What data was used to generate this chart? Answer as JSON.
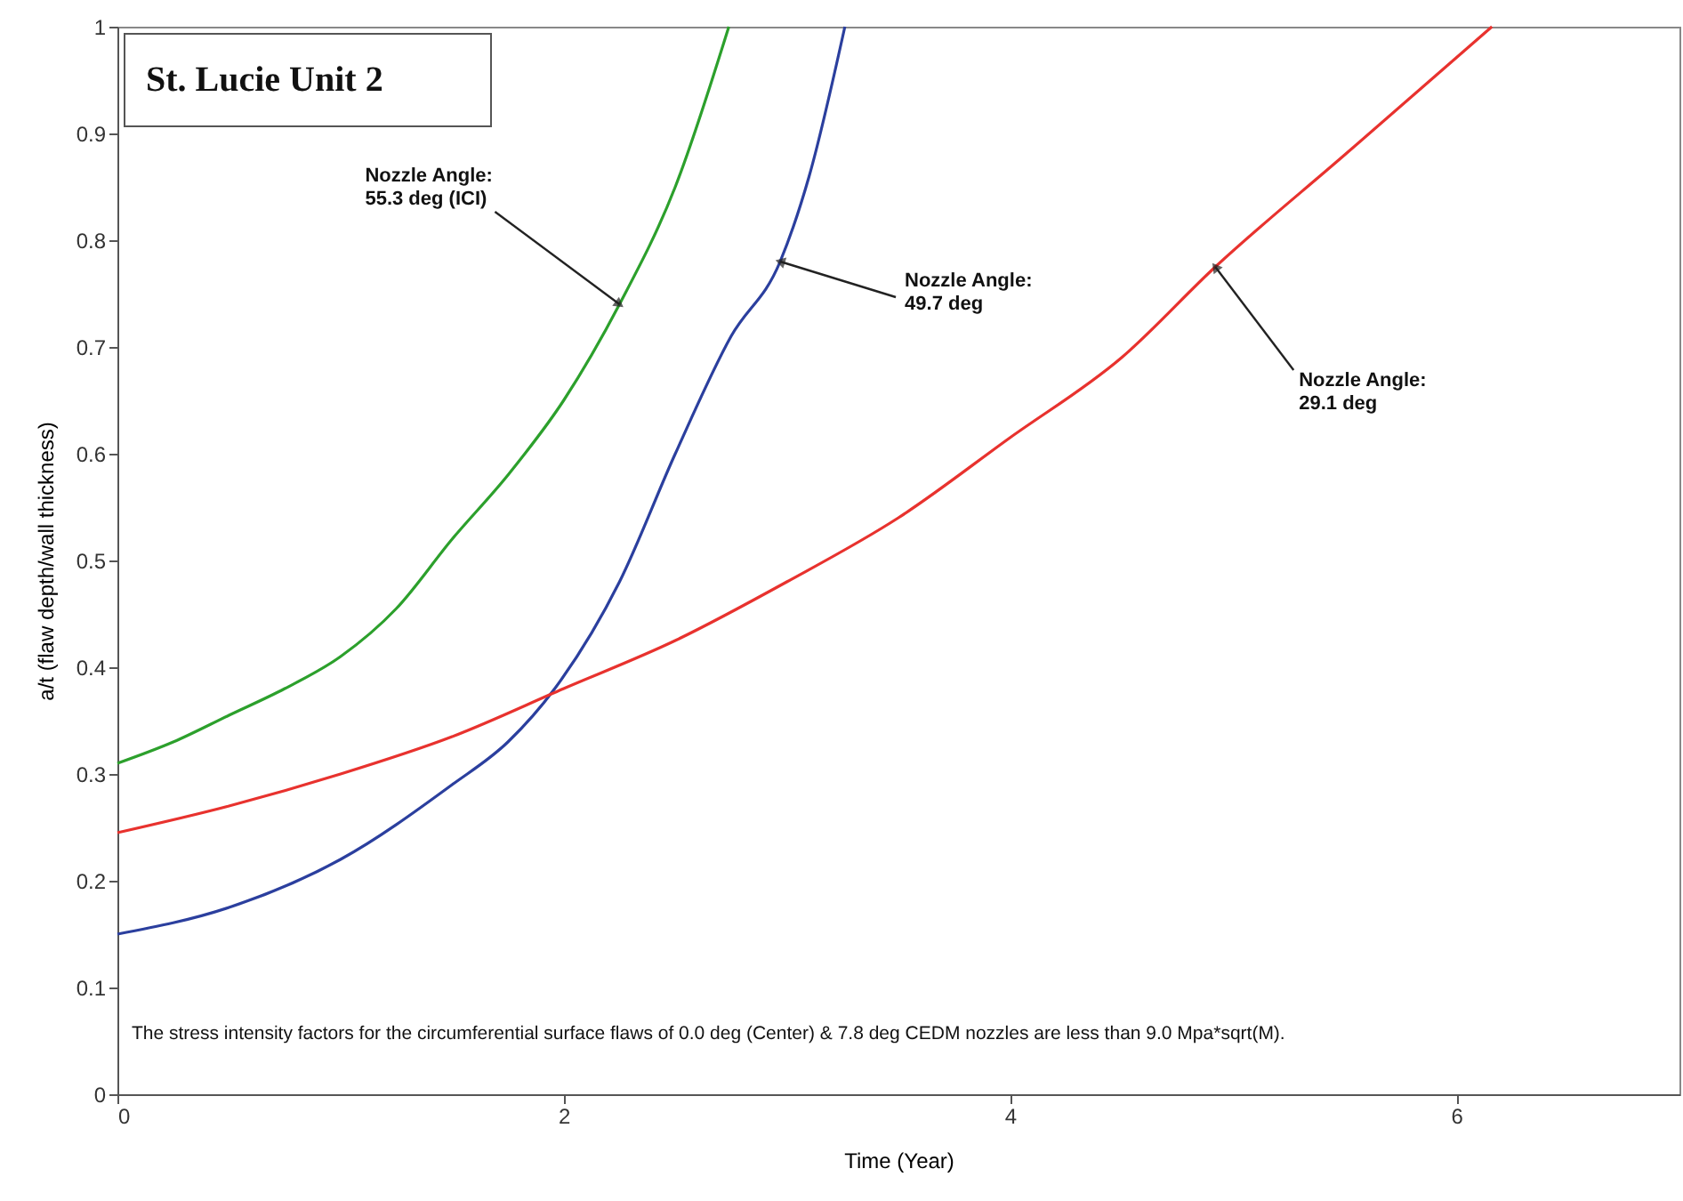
{
  "chart_data": {
    "type": "line",
    "title": "St. Lucie Unit 2",
    "xlabel": "Time (Year)",
    "ylabel": "a/t (flaw depth/wall thickness)",
    "xlim": [
      0,
      7
    ],
    "xticks": [
      0,
      2,
      4,
      6
    ],
    "ylim": [
      0,
      1
    ],
    "yticks": [
      0,
      0.1,
      0.2,
      0.3,
      0.4,
      0.5,
      0.6,
      0.7,
      0.8,
      0.9,
      1
    ],
    "grid": false,
    "marker": "none",
    "line_style": "solid",
    "series": [
      {
        "color": "#2ca02c",
        "x": [
          0,
          0.25,
          0.5,
          0.75,
          1,
          1.25,
          1.5,
          1.75,
          2,
          2.25,
          2.5,
          2.74
        ],
        "values": [
          0.31,
          0.33,
          0.355,
          0.38,
          0.41,
          0.455,
          0.52,
          0.58,
          0.65,
          0.74,
          0.85,
          1.0
        ]
      },
      {
        "color": "#2b3f9e",
        "x": [
          0,
          0.5,
          1,
          1.5,
          1.75,
          1.96,
          2.25,
          2.5,
          2.75,
          2.97,
          3.1,
          3.26
        ],
        "values": [
          0.15,
          0.175,
          0.22,
          0.29,
          0.33,
          0.38,
          0.48,
          0.6,
          0.71,
          0.78,
          0.86,
          1.0
        ]
      },
      {
        "color": "#e8322e",
        "x": [
          0,
          0.5,
          1,
          1.5,
          2,
          2.5,
          3,
          3.5,
          4,
          4.5,
          4.92,
          5.5,
          6.16
        ],
        "values": [
          0.245,
          0.27,
          0.3,
          0.335,
          0.38,
          0.425,
          0.48,
          0.54,
          0.615,
          0.69,
          0.775,
          0.88,
          1.0
        ]
      }
    ],
    "annotations": [
      {
        "text": "Nozzle Angle:\n55.3 deg (ICI)",
        "x": 2.25,
        "y": 0.74
      },
      {
        "text": "Nozzle Angle:\n49.7 deg",
        "x": 2.97,
        "y": 0.78
      },
      {
        "text": "Nozzle Angle:\n29.1 deg",
        "x": 4.92,
        "y": 0.775
      },
      "The stress intensity factors for the circumferential surface flaws of 0.0 deg (Center) & 7.8 deg CEDM nozzles are less than 9.0 Mpa*sqrt(M)."
    ]
  }
}
